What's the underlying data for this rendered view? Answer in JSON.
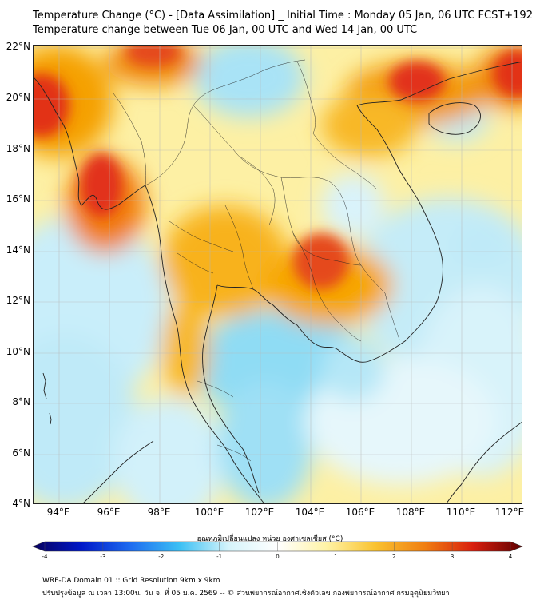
{
  "title": {
    "line1": "Temperature Change (°C) - [Data Assimilation] _ Initial Time : Monday 05 Jan, 06 UTC FCST+192",
    "line2": "Temperature change between Tue 06 Jan, 00 UTC and Wed 14 Jan, 00 UTC"
  },
  "map": {
    "lat_labels": [
      "22°N",
      "20°N",
      "18°N",
      "16°N",
      "14°N",
      "12°N",
      "10°N",
      "8°N",
      "6°N",
      "4°N"
    ],
    "lon_labels": [
      "94°E",
      "96°E",
      "98°E",
      "100°E",
      "102°E",
      "104°E",
      "106°E",
      "108°E",
      "110°E",
      "112°E"
    ],
    "lat_range": [
      4,
      22
    ],
    "lon_range": [
      93,
      112.5
    ],
    "field_note_colors": {
      "warm": "#f7a600",
      "hot": "#e8261a",
      "cool": "#5cd3f2",
      "neutral": "#ffffff"
    }
  },
  "colorbar": {
    "label": "อุณหภูมิเปลี่ยนแปลง หน่วย องศาเซลเซียส (°C)",
    "min": -4,
    "max": 4,
    "ticks": [
      "-4",
      "-3",
      "-2",
      "-1",
      "0",
      "1",
      "2",
      "3",
      "4"
    ],
    "stops": [
      "#08005e",
      "#0018c8",
      "#1e6cf0",
      "#3cc0f4",
      "#d6f4fb",
      "#ffffff",
      "#fff3a6",
      "#f9c230",
      "#f07f12",
      "#d81e0e",
      "#5e0000"
    ]
  },
  "footer": {
    "line1": "WRF-DA Domain 01 :: Grid Resolution 9km x 9km",
    "line2": "ปรับปรุงข้อมูล ณ เวลา 13:00น. วัน จ. ที่ 05 ม.ค. 2569 -- © ส่วนพยากรณ์อากาศเชิงตัวเลข กองพยากรณ์อากาศ กรมอุตุนิยมวิทยา"
  }
}
